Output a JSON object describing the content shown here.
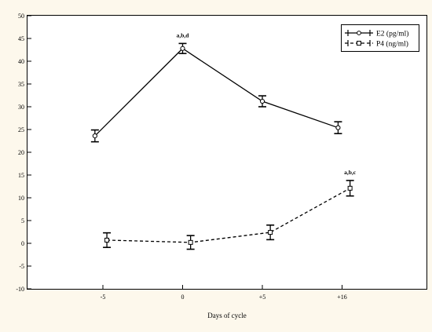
{
  "chart_data": {
    "type": "line",
    "title": "",
    "xlabel": "Days of cycle",
    "ylabel": "",
    "categories": [
      "-5",
      "0",
      "+5",
      "+16"
    ],
    "ylim": [
      -10,
      50
    ],
    "yticks": [
      -10,
      -5,
      0,
      5,
      10,
      15,
      20,
      25,
      30,
      35,
      40,
      45,
      50
    ],
    "grid": false,
    "legend_position": "top-right",
    "series": [
      {
        "name": "E2 (pg/ml)",
        "style": "solid",
        "marker": "circle",
        "color": "#000000",
        "x_positions": [
          -0.1,
          1.0,
          2.0,
          2.95
        ],
        "values": [
          23.6,
          42.8,
          31.2,
          25.4
        ],
        "errors": [
          1.3,
          1.1,
          1.2,
          1.3
        ]
      },
      {
        "name": "P4 (ng/ml)",
        "style": "dashed",
        "marker": "square",
        "color": "#000000",
        "x_positions": [
          0.05,
          1.1,
          2.1,
          3.1
        ],
        "values": [
          0.7,
          0.2,
          2.4,
          12.1
        ],
        "errors": [
          1.6,
          1.5,
          1.6,
          1.7
        ]
      }
    ],
    "annotations": [
      {
        "series": 0,
        "index": 1,
        "text": "a,b,d"
      },
      {
        "series": 1,
        "index": 3,
        "text": "a,b,c"
      }
    ]
  }
}
